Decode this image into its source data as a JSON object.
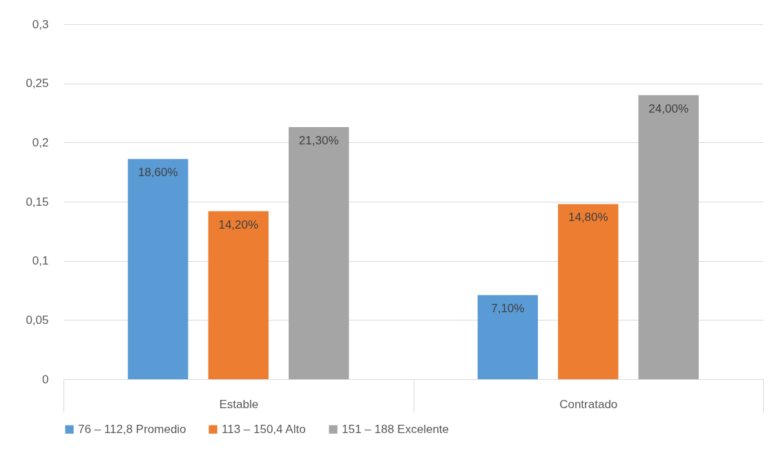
{
  "chart_data": {
    "type": "bar",
    "categories": [
      "Estable",
      "Contratado"
    ],
    "series": [
      {
        "name": "76 – 112,8 Promedio",
        "color": "#5b9bd5",
        "values": [
          0.186,
          0.071
        ],
        "value_labels": [
          "18,60%",
          "7,10%"
        ]
      },
      {
        "name": "113 – 150,4 Alto",
        "color": "#ed7d31",
        "values": [
          0.142,
          0.148
        ],
        "value_labels": [
          "14,20%",
          "14,80%"
        ]
      },
      {
        "name": "151 – 188 Excelente",
        "color": "#a5a5a5",
        "values": [
          0.213,
          0.24
        ],
        "value_labels": [
          "21,30%",
          "24,00%"
        ]
      }
    ],
    "ylim": [
      0,
      0.3
    ],
    "yticks": [
      {
        "value": 0,
        "label": "0"
      },
      {
        "value": 0.05,
        "label": "0,05"
      },
      {
        "value": 0.1,
        "label": "0,1"
      },
      {
        "value": 0.15,
        "label": "0,15"
      },
      {
        "value": 0.2,
        "label": "0,2"
      },
      {
        "value": 0.25,
        "label": "0,25"
      },
      {
        "value": 0.3,
        "label": "0,3"
      }
    ],
    "grid": "y",
    "legend": "bottom"
  }
}
